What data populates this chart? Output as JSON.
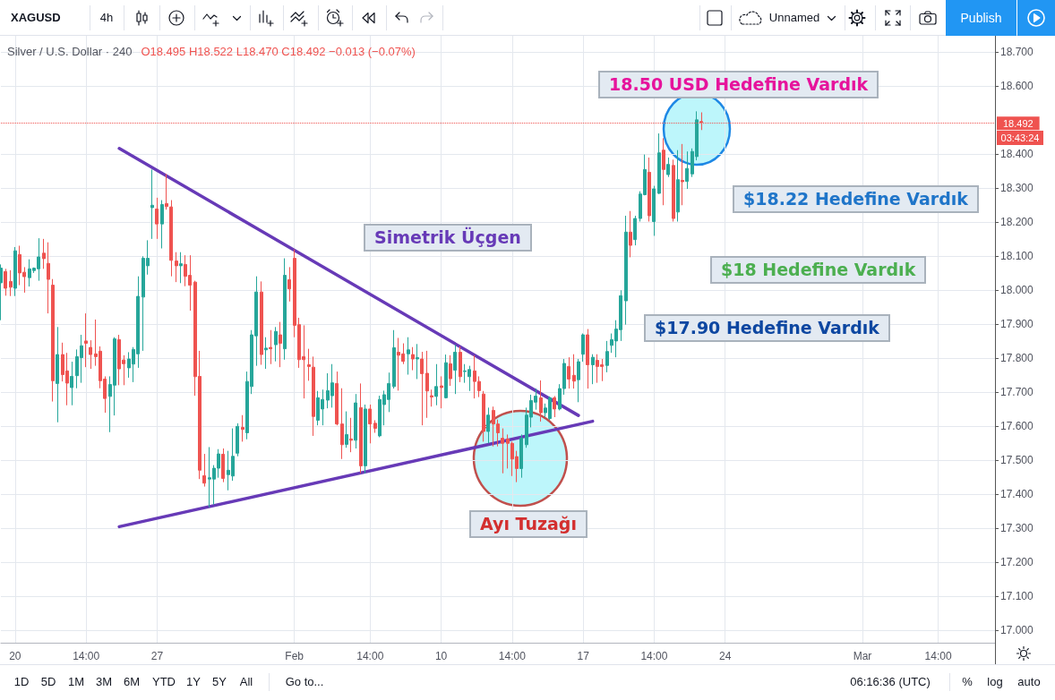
{
  "chart_data": {
    "type": "candlestick",
    "title": "Silver / U.S. Dollar · 240",
    "subtitle": "O18.495 H18.522 L18.470 C18.492 −0.013 (−0.07%)",
    "annotations": [
      "18.50 USD Hedefine Vardık",
      "$18.22 Hedefine Vardık",
      "Simetrik Üçgen",
      "$18 Hedefine Vardık",
      "$17.90 Hedefine Vardık",
      "Ayı Tuzağı",
      "03:43:24",
      "XAGUSD",
      "4h",
      "Unnamed",
      "Publish",
      "1D",
      "5D",
      "1M",
      "3M",
      "6M",
      "YTD",
      "1Y",
      "5Y",
      "All",
      "Go to...",
      "06:16:36 (UTC)",
      "%",
      "log",
      "auto"
    ],
    "categories": [
      null,
      null,
      null,
      "20",
      null,
      null,
      null,
      null,
      null,
      null,
      null,
      null,
      null,
      null,
      null,
      null,
      null,
      null,
      "14:00",
      null,
      null,
      null,
      null,
      null,
      null,
      null,
      null,
      null,
      null,
      null,
      null,
      null,
      null,
      "27",
      null,
      null,
      null,
      null,
      null,
      null,
      null,
      null,
      null,
      null,
      null,
      null,
      null,
      null,
      null,
      null,
      null,
      null,
      null,
      null,
      null,
      null,
      null,
      null,
      null,
      null,
      null,
      null,
      "Feb",
      null,
      null,
      null,
      null,
      null,
      null,
      null,
      null,
      null,
      null,
      null,
      null,
      null,
      null,
      null,
      "14:00",
      null,
      null,
      null,
      null,
      null,
      null,
      null,
      null,
      null,
      null,
      null,
      null,
      null,
      null,
      "10",
      null,
      null,
      null,
      null,
      null,
      null,
      null,
      null,
      null,
      null,
      null,
      null,
      null,
      null,
      "14:00",
      null,
      null,
      null,
      null,
      null,
      null,
      null,
      null,
      null,
      null,
      null,
      null,
      null,
      null,
      "17",
      null,
      null,
      null,
      null,
      null,
      null,
      null,
      null,
      null,
      null,
      null,
      null,
      null,
      null,
      "14:00",
      null,
      null,
      null,
      null,
      null,
      null,
      null,
      null,
      null,
      null,
      null,
      null,
      null,
      null,
      "24",
      null,
      null,
      null,
      null,
      null,
      null,
      null,
      null,
      null,
      null,
      null,
      null,
      null,
      null,
      null,
      null,
      null,
      null,
      null,
      null,
      null,
      null,
      null,
      null,
      null,
      null,
      null,
      null,
      "Mar",
      null,
      null,
      null,
      null,
      null,
      null,
      null,
      null,
      null,
      null,
      null,
      null,
      null,
      null,
      null,
      "14:00",
      null,
      null,
      null,
      null,
      null,
      null,
      null,
      null,
      null,
      null,
      null,
      null
    ],
    "ohlc": [
      [
        18.021,
        18.075,
        17.911,
        18.064
      ],
      [
        18.054,
        18.062,
        17.983,
        18.005
      ],
      [
        18.025,
        18.058,
        17.982,
        18.008
      ],
      [
        18.005,
        18.126,
        17.982,
        18.115
      ],
      [
        18.104,
        18.13,
        18.014,
        18.05
      ],
      [
        18.052,
        18.067,
        17.992,
        18.039
      ],
      [
        18.036,
        18.09,
        18.01,
        18.062
      ],
      [
        18.057,
        18.066,
        18.05,
        18.064
      ],
      [
        18.062,
        18.152,
        18.027,
        18.097
      ],
      [
        18.108,
        18.15,
        18.062,
        18.092
      ],
      [
        18.078,
        18.14,
        17.931,
        18.031
      ],
      [
        18.014,
        18.032,
        17.672,
        17.733
      ],
      [
        17.725,
        17.891,
        17.611,
        17.81
      ],
      [
        17.81,
        17.845,
        17.731,
        17.751
      ],
      [
        17.762,
        17.815,
        17.661,
        17.726
      ],
      [
        17.713,
        17.789,
        17.661,
        17.746
      ],
      [
        17.748,
        17.825,
        17.711,
        17.804
      ],
      [
        17.801,
        17.868,
        17.727,
        17.836
      ],
      [
        17.85,
        17.931,
        17.773,
        17.843
      ],
      [
        17.831,
        17.852,
        17.768,
        17.81
      ],
      [
        17.812,
        17.913,
        17.777,
        17.804
      ],
      [
        17.82,
        17.834,
        17.711,
        17.733
      ],
      [
        17.738,
        17.746,
        17.639,
        17.681
      ],
      [
        17.687,
        17.746,
        17.582,
        17.722
      ],
      [
        17.72,
        17.861,
        17.631,
        17.856
      ],
      [
        17.854,
        17.868,
        17.72,
        17.768
      ],
      [
        17.794,
        17.808,
        17.72,
        17.783
      ],
      [
        17.771,
        17.817,
        17.742,
        17.797
      ],
      [
        17.782,
        17.832,
        17.729,
        17.825
      ],
      [
        17.812,
        18.04,
        17.771,
        17.981
      ],
      [
        17.979,
        18.099,
        17.821,
        18.093
      ],
      [
        18.071,
        18.146,
        18.045,
        18.093
      ],
      [
        18.242,
        18.354,
        18.15,
        18.249
      ],
      [
        18.238,
        18.271,
        18.15,
        18.194
      ],
      [
        18.194,
        18.264,
        18.122,
        18.251
      ],
      [
        18.254,
        18.341,
        18.236,
        18.245
      ],
      [
        18.244,
        18.264,
        18.04,
        18.087
      ],
      [
        18.085,
        18.111,
        18.023,
        18.071
      ],
      [
        18.071,
        18.111,
        18.02,
        18.077
      ],
      [
        18.075,
        18.102,
        18.011,
        18.04
      ],
      [
        18.043,
        18.102,
        17.939,
        18.014
      ],
      [
        18.023,
        18.027,
        17.689,
        17.745
      ],
      [
        17.746,
        17.821,
        17.444,
        17.47
      ],
      [
        17.454,
        17.518,
        17.422,
        17.432
      ],
      [
        17.444,
        17.538,
        17.361,
        17.448
      ],
      [
        17.444,
        17.485,
        17.369,
        17.476
      ],
      [
        17.476,
        17.532,
        17.448,
        17.518
      ],
      [
        17.517,
        17.534,
        17.435,
        17.446
      ],
      [
        17.457,
        17.527,
        17.411,
        17.47
      ],
      [
        17.453,
        17.593,
        17.439,
        17.511
      ],
      [
        17.52,
        17.608,
        17.511,
        17.599
      ],
      [
        17.596,
        17.632,
        17.554,
        17.59
      ],
      [
        17.58,
        17.76,
        17.561,
        17.731
      ],
      [
        17.716,
        17.882,
        17.694,
        17.868
      ],
      [
        17.865,
        18.04,
        17.777,
        17.994
      ],
      [
        17.994,
        18.025,
        17.78,
        17.81
      ],
      [
        17.824,
        17.861,
        17.768,
        17.829
      ],
      [
        17.831,
        17.882,
        17.782,
        17.827
      ],
      [
        17.839,
        17.891,
        17.79,
        17.878
      ],
      [
        17.868,
        17.906,
        17.773,
        17.843
      ],
      [
        17.827,
        18.093,
        17.795,
        18.043
      ],
      [
        18.03,
        18.067,
        17.966,
        18.003
      ],
      [
        18.093,
        18.119,
        17.861,
        17.896
      ],
      [
        17.898,
        17.918,
        17.771,
        17.795
      ],
      [
        17.804,
        17.896,
        17.681,
        17.795
      ],
      [
        17.78,
        17.827,
        17.733,
        17.775
      ],
      [
        17.773,
        17.804,
        17.571,
        17.628
      ],
      [
        17.617,
        17.703,
        17.602,
        17.683
      ],
      [
        17.65,
        17.707,
        17.602,
        17.678
      ],
      [
        17.676,
        17.755,
        17.652,
        17.704
      ],
      [
        17.689,
        17.782,
        17.654,
        17.727
      ],
      [
        17.725,
        17.76,
        17.602,
        17.606
      ],
      [
        17.606,
        17.711,
        17.503,
        17.545
      ],
      [
        17.546,
        17.643,
        17.536,
        17.575
      ],
      [
        17.562,
        17.624,
        17.523,
        17.558
      ],
      [
        17.558,
        17.694,
        17.534,
        17.668
      ],
      [
        17.654,
        17.725,
        17.461,
        17.483
      ],
      [
        17.483,
        17.663,
        17.461,
        17.65
      ],
      [
        17.65,
        17.663,
        17.549,
        17.606
      ],
      [
        17.608,
        17.617,
        17.58,
        17.593
      ],
      [
        17.571,
        17.689,
        17.567,
        17.678
      ],
      [
        17.663,
        17.704,
        17.602,
        17.692
      ],
      [
        17.678,
        17.757,
        17.641,
        17.725
      ],
      [
        17.716,
        17.882,
        17.71,
        17.83
      ],
      [
        17.817,
        17.859,
        17.704,
        17.808
      ],
      [
        17.812,
        17.843,
        17.782,
        17.79
      ],
      [
        17.812,
        17.861,
        17.751,
        17.824
      ],
      [
        17.81,
        17.832,
        17.764,
        17.797
      ],
      [
        17.797,
        17.841,
        17.738,
        17.801
      ],
      [
        17.797,
        17.818,
        17.602,
        17.754
      ],
      [
        17.755,
        17.821,
        17.624,
        17.703
      ],
      [
        17.689,
        17.707,
        17.657,
        17.685
      ],
      [
        17.687,
        17.782,
        17.661,
        17.716
      ],
      [
        17.718,
        17.746,
        17.652,
        17.713
      ],
      [
        17.683,
        17.81,
        17.681,
        17.786
      ],
      [
        17.783,
        17.808,
        17.718,
        17.739
      ],
      [
        17.764,
        17.839,
        17.694,
        17.817
      ],
      [
        17.817,
        17.834,
        17.729,
        17.745
      ],
      [
        17.76,
        17.782,
        17.727,
        17.762
      ],
      [
        17.745,
        17.777,
        17.703,
        17.766
      ],
      [
        17.762,
        17.808,
        17.681,
        17.731
      ],
      [
        17.731,
        17.746,
        17.685,
        17.704
      ],
      [
        17.694,
        17.703,
        17.554,
        17.584
      ],
      [
        17.584,
        17.654,
        17.549,
        17.632
      ],
      [
        17.646,
        17.657,
        17.54,
        17.606
      ],
      [
        17.606,
        17.619,
        17.54,
        17.58
      ],
      [
        17.564,
        17.593,
        17.461,
        17.549
      ],
      [
        17.562,
        17.575,
        17.475,
        17.549
      ],
      [
        17.549,
        17.554,
        17.453,
        17.503
      ],
      [
        17.51,
        17.527,
        17.435,
        17.475
      ],
      [
        17.475,
        17.575,
        17.448,
        17.564
      ],
      [
        17.545,
        17.654,
        17.536,
        17.632
      ],
      [
        17.626,
        17.692,
        17.596,
        17.675
      ],
      [
        17.67,
        17.71,
        17.648,
        17.688
      ],
      [
        17.683,
        17.734,
        17.613,
        17.639
      ],
      [
        17.639,
        17.666,
        17.626,
        17.653
      ],
      [
        17.622,
        17.687,
        17.618,
        17.683
      ],
      [
        17.683,
        17.688,
        17.626,
        17.65
      ],
      [
        17.65,
        17.723,
        17.646,
        17.71
      ],
      [
        17.71,
        17.797,
        17.692,
        17.784
      ],
      [
        17.775,
        17.802,
        17.71,
        17.738
      ],
      [
        17.749,
        17.811,
        17.71,
        17.732
      ],
      [
        17.736,
        17.797,
        17.67,
        17.789
      ],
      [
        17.811,
        17.872,
        17.789,
        17.868
      ],
      [
        17.868,
        17.885,
        17.71,
        17.78
      ],
      [
        17.78,
        17.811,
        17.723,
        17.802
      ],
      [
        17.793,
        17.811,
        17.727,
        17.775
      ],
      [
        17.78,
        17.797,
        17.732,
        17.775
      ],
      [
        17.778,
        17.85,
        17.758,
        17.819
      ],
      [
        17.837,
        17.872,
        17.815,
        17.854
      ],
      [
        17.85,
        17.911,
        17.802,
        17.885
      ],
      [
        17.883,
        17.999,
        17.85,
        17.983
      ],
      [
        17.968,
        18.218,
        17.898,
        18.17
      ],
      [
        18.17,
        18.232,
        18.096,
        18.131
      ],
      [
        18.148,
        18.218,
        18.131,
        18.21
      ],
      [
        18.21,
        18.29,
        18.201,
        18.282
      ],
      [
        18.28,
        18.398,
        18.278,
        18.354
      ],
      [
        18.346,
        18.389,
        18.201,
        18.218
      ],
      [
        18.201,
        18.306,
        18.159,
        18.297
      ],
      [
        18.284,
        18.46,
        18.282,
        18.403
      ],
      [
        18.411,
        18.446,
        18.249,
        18.354
      ],
      [
        18.339,
        18.389,
        18.332,
        18.369
      ],
      [
        18.366,
        18.383,
        18.201,
        18.21
      ],
      [
        18.229,
        18.411,
        18.201,
        18.324
      ],
      [
        18.322,
        18.429,
        18.249,
        18.318
      ],
      [
        18.319,
        18.407,
        18.297,
        18.357
      ],
      [
        18.341,
        18.416,
        18.332,
        18.407
      ],
      [
        18.392,
        18.525,
        18.381,
        18.5
      ],
      [
        18.495,
        18.522,
        18.47,
        18.492
      ],
      null,
      null,
      null,
      null,
      null,
      null,
      null,
      null,
      null,
      null,
      null,
      null,
      null,
      null,
      null,
      null,
      null,
      null,
      null,
      null,
      null,
      null,
      null,
      null,
      null,
      null,
      null,
      null,
      null,
      null,
      null,
      null,
      null,
      null,
      null,
      null,
      null,
      null,
      null,
      null,
      null,
      null,
      null,
      null,
      null,
      null,
      null,
      null,
      null,
      null,
      null,
      null,
      null,
      null,
      null,
      null,
      null,
      null,
      null,
      null,
      null,
      null
    ],
    "colors": [
      "#26a69a",
      "#ef5350",
      "#ef5350",
      "#26a69a",
      "#ef5350",
      "#ef5350",
      "#26a69a",
      "#26a69a",
      "#26a69a",
      "#ef5350",
      "#ef5350",
      "#ef5350",
      "#26a69a",
      "#ef5350",
      "#ef5350",
      "#26a69a",
      "#26a69a",
      "#26a69a",
      "#ef5350",
      "#ef5350",
      "#ef5350",
      "#ef5350",
      "#ef5350",
      "#26a69a",
      "#26a69a",
      "#ef5350",
      "#ef5350",
      "#26a69a",
      "#26a69a",
      "#26a69a",
      "#26a69a",
      "#26a69a",
      "#26a69a",
      "#ef5350",
      "#26a69a",
      "#ef5350",
      "#ef5350",
      "#ef5350",
      "#26a69a",
      "#ef5350",
      "#ef5350",
      "#ef5350",
      "#ef5350",
      "#ef5350",
      "#26a69a",
      "#26a69a",
      "#26a69a",
      "#ef5350",
      "#26a69a",
      "#26a69a",
      "#26a69a",
      "#ef5350",
      "#26a69a",
      "#26a69a",
      "#26a69a",
      "#ef5350",
      "#26a69a",
      "#ef5350",
      "#26a69a",
      "#ef5350",
      "#26a69a",
      "#ef5350",
      "#ef5350",
      "#ef5350",
      "#ef5350",
      "#ef5350",
      "#ef5350",
      "#26a69a",
      "#26a69a",
      "#26a69a",
      "#26a69a",
      "#ef5350",
      "#ef5350",
      "#26a69a",
      "#ef5350",
      "#26a69a",
      "#ef5350",
      "#26a69a",
      "#ef5350",
      "#ef5350",
      "#26a69a",
      "#26a69a",
      "#26a69a",
      "#26a69a",
      "#ef5350",
      "#ef5350",
      "#26a69a",
      "#ef5350",
      "#26a69a",
      "#ef5350",
      "#ef5350",
      "#ef5350",
      "#26a69a",
      "#ef5350",
      "#26a69a",
      "#ef5350",
      "#26a69a",
      "#ef5350",
      "#26a69a",
      "#26a69a",
      "#ef5350",
      "#ef5350",
      "#ef5350",
      "#26a69a",
      "#ef5350",
      "#ef5350",
      "#ef5350",
      "#ef5350",
      "#ef5350",
      "#ef5350",
      "#26a69a",
      "#26a69a",
      "#26a69a",
      "#26a69a",
      "#ef5350",
      "#26a69a",
      "#26a69a",
      "#ef5350",
      "#26a69a",
      "#26a69a",
      "#ef5350",
      "#ef5350",
      "#26a69a",
      "#26a69a",
      "#ef5350",
      "#26a69a",
      "#ef5350",
      "#ef5350",
      "#26a69a",
      "#26a69a",
      "#26a69a",
      "#26a69a",
      "#26a69a",
      "#ef5350",
      "#26a69a",
      "#26a69a",
      "#26a69a",
      "#ef5350",
      "#26a69a",
      "#26a69a",
      "#ef5350",
      "#26a69a",
      "#ef5350",
      "#26a69a",
      "#ef5350",
      "#26a69a",
      "#26a69a",
      "#26a69a",
      "#ef5350",
      null,
      null,
      null,
      null,
      null,
      null,
      null,
      null,
      null,
      null,
      null,
      null,
      null,
      null,
      null,
      null,
      null,
      null,
      null,
      null,
      null,
      null,
      null,
      null,
      null,
      null,
      null,
      null,
      null,
      null,
      null,
      null,
      null,
      null,
      null,
      null,
      null,
      null,
      null,
      null,
      null,
      null,
      null,
      null,
      null,
      null,
      null,
      null,
      null,
      null,
      null,
      null,
      null,
      null,
      null,
      null,
      null,
      null,
      null,
      null,
      null,
      null
    ],
    "series": [
      {
        "type": "line",
        "color": "#673ab7",
        "values": [
          null,
          null,
          null,
          null,
          null,
          null,
          null,
          null,
          null,
          null,
          null,
          null,
          null,
          null,
          null,
          null,
          null,
          null,
          null,
          null,
          null,
          null,
          null,
          null,
          null,
          18.416,
          null,
          null,
          null,
          null,
          null,
          null,
          null,
          null,
          null,
          null,
          null,
          null,
          null,
          null,
          null,
          null,
          null,
          null,
          null,
          null,
          null,
          null,
          null,
          null,
          null,
          null,
          null,
          null,
          null,
          null,
          null,
          null,
          null,
          null,
          null,
          null,
          null,
          null,
          null,
          null,
          null,
          null,
          null,
          null,
          null,
          null,
          null,
          null,
          null,
          null,
          null,
          null,
          null,
          null,
          null,
          null,
          null,
          null,
          null,
          null,
          null,
          null,
          null,
          null,
          null,
          null,
          null,
          null,
          null,
          null,
          null,
          null,
          null,
          null,
          null,
          null,
          null,
          null,
          null,
          null,
          null,
          null,
          null,
          null,
          null,
          null,
          null,
          null,
          null,
          null,
          null,
          null,
          null,
          null,
          null,
          null,
          17.631,
          null,
          null,
          null,
          null,
          null,
          null,
          null,
          null,
          null,
          null,
          null,
          null,
          null,
          null,
          null,
          null,
          null,
          null,
          null,
          null,
          null,
          null,
          null,
          null,
          null,
          null,
          null,
          null,
          null,
          null,
          null,
          null,
          null,
          null,
          null,
          null,
          null,
          null,
          null,
          null,
          null,
          null,
          null,
          null,
          null,
          null,
          null,
          null,
          null,
          null,
          null,
          null,
          null,
          null,
          null,
          null,
          null,
          null,
          null,
          null,
          null,
          null,
          null,
          null,
          null,
          null,
          null,
          null,
          null,
          null,
          null,
          null,
          null,
          null,
          null,
          null,
          null,
          null,
          null,
          null,
          null,
          null,
          null,
          null,
          null,
          null,
          null,
          null
        ]
      },
      {
        "type": "line",
        "color": "#673ab7",
        "values": [
          null,
          null,
          null,
          null,
          null,
          null,
          null,
          null,
          null,
          null,
          null,
          null,
          null,
          null,
          null,
          null,
          null,
          null,
          null,
          null,
          null,
          null,
          null,
          null,
          null,
          17.304,
          null,
          null,
          null,
          null,
          null,
          null,
          null,
          null,
          null,
          null,
          null,
          null,
          null,
          null,
          null,
          null,
          null,
          null,
          null,
          null,
          null,
          null,
          null,
          null,
          null,
          null,
          null,
          null,
          null,
          null,
          null,
          null,
          null,
          null,
          null,
          null,
          null,
          null,
          null,
          null,
          null,
          null,
          null,
          null,
          null,
          null,
          null,
          null,
          null,
          null,
          null,
          null,
          null,
          null,
          null,
          null,
          null,
          null,
          null,
          null,
          null,
          null,
          null,
          null,
          null,
          null,
          null,
          null,
          null,
          null,
          null,
          null,
          null,
          null,
          null,
          null,
          null,
          null,
          null,
          null,
          null,
          null,
          null,
          null,
          null,
          null,
          null,
          null,
          null,
          null,
          null,
          null,
          null,
          null,
          null,
          null,
          null,
          null,
          null,
          17.614,
          null,
          null,
          null,
          null,
          null,
          null,
          null,
          null,
          null,
          null,
          null,
          null,
          null,
          null,
          null,
          null,
          null,
          null,
          null,
          null,
          null,
          null,
          null,
          null,
          null,
          null,
          null,
          null,
          null,
          null,
          null,
          null,
          null,
          null,
          null,
          null,
          null,
          null,
          null,
          null,
          null,
          null,
          null,
          null,
          null,
          null,
          null,
          null,
          null,
          null,
          null,
          null,
          null,
          null,
          null,
          null,
          null,
          null,
          null,
          null,
          null,
          null,
          null,
          null,
          null,
          null,
          null,
          null,
          null,
          null,
          null,
          null,
          null,
          null,
          null,
          null,
          null,
          null,
          null,
          null,
          null,
          null,
          null,
          null,
          null
        ]
      }
    ],
    "ylim": [
      16.963,
      18.747
    ],
    "yticks": [
      {
        "value": 17,
        "label": "17.000"
      },
      {
        "value": 17.1,
        "label": "17.100"
      },
      {
        "value": 17.2,
        "label": "17.200"
      },
      {
        "value": 17.3,
        "label": "17.300"
      },
      {
        "value": 17.4,
        "label": "17.400"
      },
      {
        "value": 17.5,
        "label": "17.500"
      },
      {
        "value": 17.6,
        "label": "17.600"
      },
      {
        "value": 17.7,
        "label": "17.700"
      },
      {
        "value": 17.8,
        "label": "17.800"
      },
      {
        "value": 17.9,
        "label": "17.900"
      },
      {
        "value": 18,
        "label": "18.000"
      },
      {
        "value": 18.1,
        "label": "18.100"
      },
      {
        "value": 18.2,
        "label": "18.200"
      },
      {
        "value": 18.3,
        "label": "18.300"
      },
      {
        "value": 18.4,
        "label": "18.400"
      },
      {
        "value": 18.6,
        "label": "18.600"
      },
      {
        "value": 18.7,
        "label": "18.700"
      }
    ],
    "grid": true,
    "ref_lines": [
      {
        "axis": "y",
        "value": 18.492,
        "label": "18.492",
        "color": "#ef5350",
        "line_style": "dotted"
      }
    ]
  }
}
